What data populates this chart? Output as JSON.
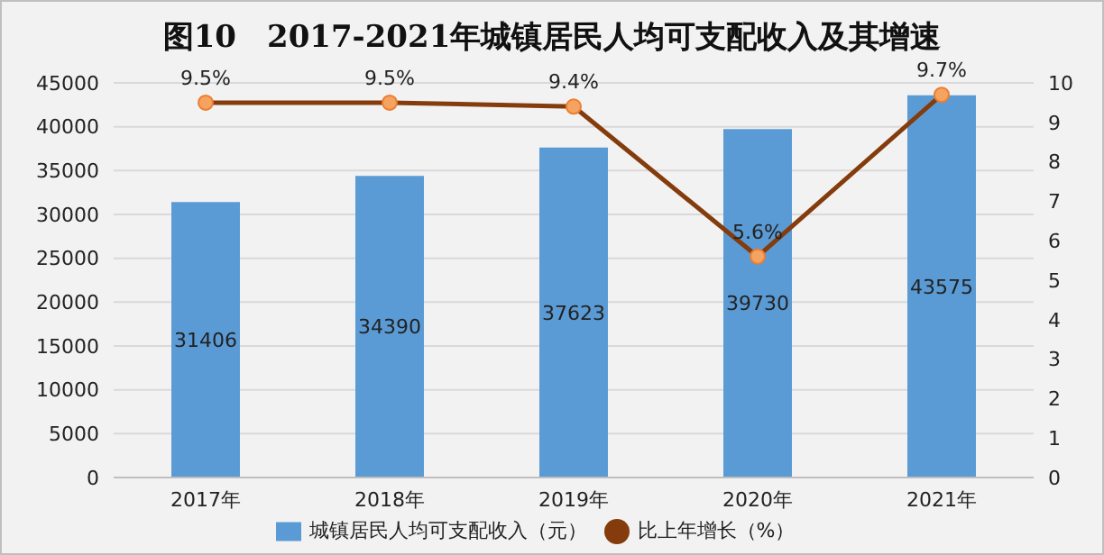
{
  "chart_data": {
    "type": "bar",
    "title": "图10　2017-2021年城镇居民人均可支配收入及其增速",
    "categories": [
      "2017年",
      "2018年",
      "2019年",
      "2020年",
      "2021年"
    ],
    "series": [
      {
        "name": "城镇居民人均可支配收入（元）",
        "color": "#5b9bd5",
        "values": [
          31406,
          34390,
          37623,
          39730,
          43575
        ],
        "value_labels": [
          "31406",
          "34390",
          "37623",
          "39730",
          "43575"
        ]
      },
      {
        "name": "比上年增长（%）",
        "type": "line",
        "axis": "y2",
        "color": "#843c0c",
        "values": [
          9.5,
          9.5,
          9.4,
          5.6,
          9.7
        ],
        "value_labels": [
          "9.5%",
          "9.5%",
          "9.4%",
          "5.6%",
          "9.7%"
        ]
      }
    ],
    "ylim": [
      0,
      45000
    ],
    "yticks": [
      0,
      5000,
      10000,
      15000,
      20000,
      25000,
      30000,
      35000,
      40000,
      45000
    ],
    "y2lim": [
      0,
      10
    ],
    "y2ticks": [
      0,
      1,
      2,
      3,
      4,
      5,
      6,
      7,
      8,
      9,
      10
    ],
    "grid": "y",
    "legend": "bottom",
    "marker": "circle",
    "line_style": "solid"
  }
}
